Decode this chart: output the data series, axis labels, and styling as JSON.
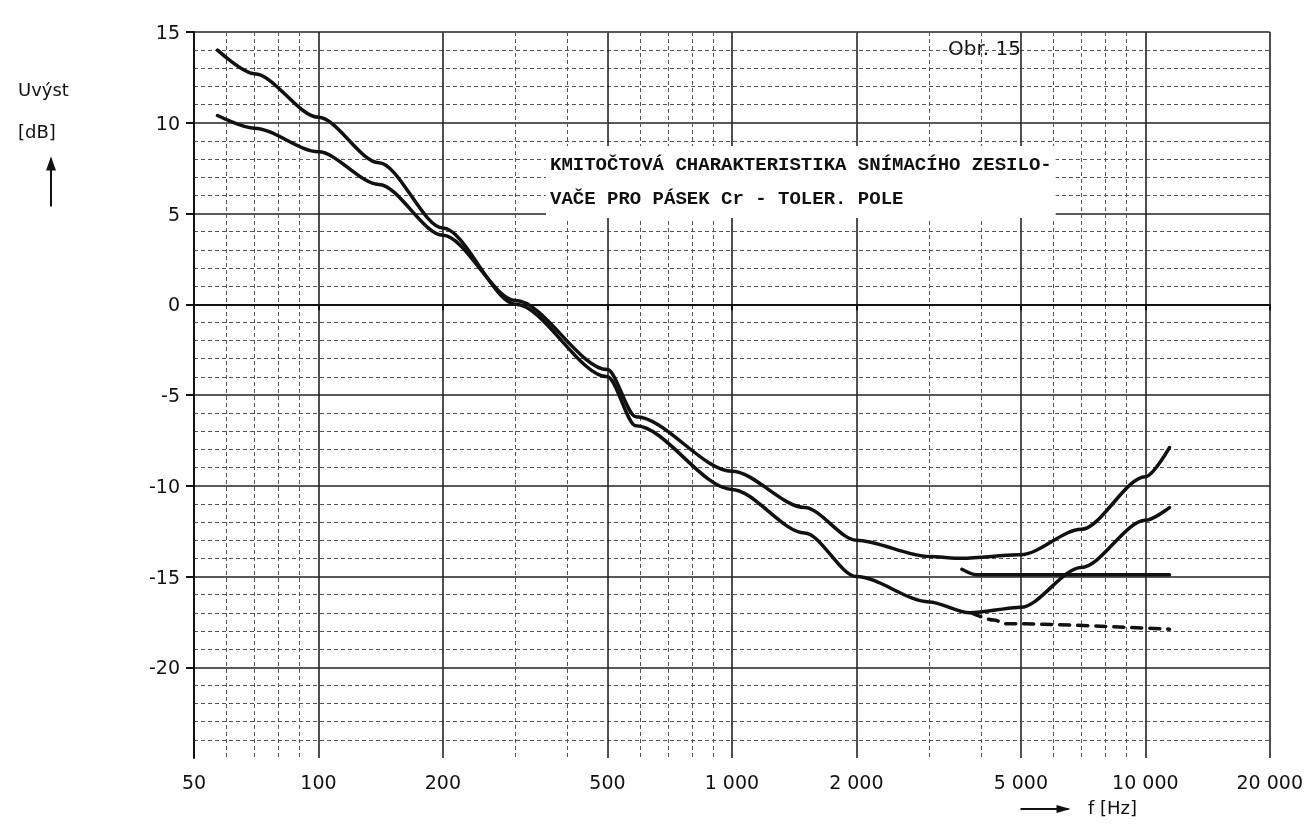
{
  "chart_data": {
    "type": "line",
    "title": "KMITOČTOVÁ CHARAKTERISTIKA SNÍMACÍHO ZESILO-\nVAČE PRO PÁSEK Cr - TOLER. POLE",
    "annotations": [
      "Obr. 15"
    ],
    "xlabel": "f [Hz]",
    "ylabel": "Uvýst\n[dB]",
    "log": "x",
    "xlim": [
      50,
      20000
    ],
    "xticks": [
      50,
      100,
      200,
      500,
      {
        "value": 1000,
        "label": "1 000"
      },
      {
        "value": 2000,
        "label": "2 000"
      },
      {
        "value": 5000,
        "label": "5 000"
      },
      {
        "value": 10000,
        "label": "10 000"
      },
      {
        "value": 20000,
        "label": "20 000"
      }
    ],
    "ylim": [
      -25,
      15
    ],
    "yticks": [
      15,
      10,
      5,
      0,
      -5,
      -10,
      -15,
      -20
    ],
    "grid": true,
    "marker": "none",
    "series": [
      {
        "color": "#111111",
        "line_style": "solid",
        "x": [
          57,
          70,
          100,
          140,
          200,
          300,
          500,
          586,
          1000,
          1500,
          2000,
          3000,
          3760,
          5000,
          7000,
          10000,
          11440
        ],
        "values": [
          14.0,
          12.7,
          10.3,
          7.8,
          4.2,
          0.0,
          -4.0,
          -6.7,
          -10.2,
          -12.6,
          -15.0,
          -16.4,
          -17.0,
          -16.7,
          -14.5,
          -11.9,
          -11.2
        ]
      },
      {
        "color": "#111111",
        "line_style": "solid",
        "x": [
          57,
          70,
          100,
          140,
          200,
          300,
          500,
          586,
          1000,
          1500,
          2000,
          3000,
          3600,
          5000,
          7000,
          10000,
          11440
        ],
        "values": [
          10.4,
          9.7,
          8.4,
          6.6,
          3.8,
          0.2,
          -3.6,
          -6.2,
          -9.2,
          -11.2,
          -13.0,
          -13.9,
          -14.0,
          -13.8,
          -12.4,
          -9.5,
          -7.9
        ]
      },
      {
        "color": "#111111",
        "line_style": "solid",
        "x": [
          3600,
          3900,
          11440
        ],
        "values": [
          -14.6,
          -14.9,
          -14.9
        ]
      },
      {
        "color": "#111111",
        "line_style": "dashed",
        "x": [
          3800,
          4300,
          4600,
          11440
        ],
        "values": [
          -17.0,
          -17.4,
          -17.6,
          -17.9
        ]
      }
    ]
  }
}
